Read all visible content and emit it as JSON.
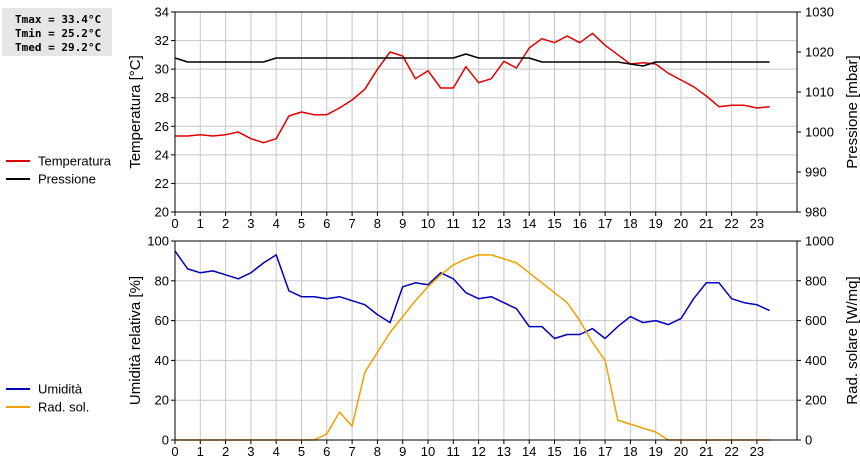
{
  "stats": {
    "tmax": "Tmax = 33.4°C",
    "tmin": "Tmin = 25.2°C",
    "tmed": "Tmed = 29.2°C"
  },
  "colors": {
    "temperature": "#dd0000",
    "pressure": "#000000",
    "humidity": "#0000bb",
    "radiation": "#f0a000",
    "grid": "#c8c8c8"
  },
  "chart_data": [
    {
      "type": "line",
      "x_ticks": [
        "0",
        "1",
        "2",
        "3",
        "4",
        "5",
        "6",
        "7",
        "8",
        "9",
        "10",
        "11",
        "12",
        "13",
        "14",
        "15",
        "16",
        "17",
        "18",
        "19",
        "20",
        "21",
        "22",
        "23"
      ],
      "ylabel_left": "Temperatura [°C]",
      "ylabel_right": "Pressione [mbar]",
      "ylim_left": [
        20,
        35
      ],
      "yticks_left": [
        "20",
        "22",
        "24",
        "26",
        "28",
        "30",
        "32",
        "34"
      ],
      "ylim_right": [
        980,
        1030
      ],
      "yticks_right": [
        "980",
        "990",
        "1000",
        "1010",
        "1020",
        "1030"
      ],
      "grid": true,
      "legend_position": "left",
      "x": [
        0,
        0.5,
        1,
        1.5,
        2,
        2.5,
        3,
        3.5,
        4,
        4.5,
        5,
        5.5,
        6,
        6.5,
        7,
        7.5,
        8,
        8.5,
        9,
        9.5,
        10,
        10.5,
        11,
        11.5,
        12,
        12.5,
        13,
        13.5,
        14,
        14.5,
        15,
        15.5,
        16,
        16.5,
        17,
        17.5,
        18,
        18.5,
        19,
        19.5,
        20,
        20.5,
        21,
        21.5,
        22,
        22.5,
        23,
        23.5
      ],
      "series": [
        {
          "name": "Temperatura",
          "axis": "left",
          "values": [
            25.7,
            25.7,
            25.8,
            25.7,
            25.8,
            26.0,
            25.5,
            25.2,
            25.5,
            27.2,
            27.5,
            27.3,
            27.3,
            27.8,
            28.4,
            29.2,
            30.7,
            32.0,
            31.7,
            30.0,
            30.6,
            29.3,
            29.3,
            30.9,
            29.7,
            30.0,
            31.3,
            30.8,
            32.3,
            33.0,
            32.7,
            33.2,
            32.7,
            33.4,
            32.5,
            31.8,
            31.1,
            31.2,
            31.1,
            30.4,
            29.9,
            29.4,
            28.7,
            27.9,
            28.0,
            28.0,
            27.8,
            27.9
          ]
        },
        {
          "name": "Pressione",
          "axis": "right",
          "values": [
            1018.5,
            1017.5,
            1017.5,
            1017.5,
            1017.5,
            1017.5,
            1017.5,
            1017.5,
            1018.5,
            1018.5,
            1018.5,
            1018.5,
            1018.5,
            1018.5,
            1018.5,
            1018.5,
            1018.5,
            1018.5,
            1018.5,
            1018.5,
            1018.5,
            1018.5,
            1018.5,
            1019.5,
            1018.5,
            1018.5,
            1018.5,
            1018.5,
            1018.5,
            1017.5,
            1017.5,
            1017.5,
            1017.5,
            1017.5,
            1017.5,
            1017.5,
            1017.0,
            1016.5,
            1017.5,
            1017.5,
            1017.5,
            1017.5,
            1017.5,
            1017.5,
            1017.5,
            1017.5,
            1017.5,
            1017.5
          ]
        }
      ]
    },
    {
      "type": "line",
      "x_ticks": [
        "0",
        "1",
        "2",
        "3",
        "4",
        "5",
        "6",
        "7",
        "8",
        "9",
        "10",
        "11",
        "12",
        "13",
        "14",
        "15",
        "16",
        "17",
        "18",
        "19",
        "20",
        "21",
        "22",
        "23"
      ],
      "ylabel_left": "Umidità relativa [%]",
      "ylabel_right": "Rad. solare [W/mq]",
      "ylim_left": [
        0,
        100
      ],
      "yticks_left": [
        "0",
        "20",
        "40",
        "60",
        "80",
        "100"
      ],
      "ylim_right": [
        0,
        1000
      ],
      "yticks_right": [
        "0",
        "200",
        "400",
        "600",
        "800",
        "1000"
      ],
      "grid": true,
      "legend_position": "left",
      "x": [
        0,
        0.5,
        1,
        1.5,
        2,
        2.5,
        3,
        3.5,
        4,
        4.5,
        5,
        5.5,
        6,
        6.5,
        7,
        7.5,
        8,
        8.5,
        9,
        9.5,
        10,
        10.5,
        11,
        11.5,
        12,
        12.5,
        13,
        13.5,
        14,
        14.5,
        15,
        15.5,
        16,
        16.5,
        17,
        17.5,
        18,
        18.5,
        19,
        19.5,
        20,
        20.5,
        21,
        21.5,
        22,
        22.5,
        23,
        23.5
      ],
      "series": [
        {
          "name": "Umidità",
          "axis": "left",
          "values": [
            95,
            86,
            84,
            85,
            83,
            81,
            84,
            89,
            93,
            75,
            72,
            72,
            71,
            72,
            70,
            68,
            63,
            59,
            77,
            79,
            78,
            84,
            81,
            74,
            71,
            72,
            69,
            66,
            57,
            57,
            51,
            53,
            53,
            56,
            51,
            57,
            62,
            59,
            60,
            58,
            61,
            71,
            79,
            79,
            71,
            69,
            68,
            65
          ]
        },
        {
          "name": "Rad. sol.",
          "axis": "right",
          "values": [
            0,
            0,
            0,
            0,
            0,
            0,
            0,
            0,
            0,
            0,
            0,
            0,
            30,
            140,
            70,
            340,
            440,
            540,
            620,
            700,
            770,
            830,
            880,
            910,
            930,
            930,
            910,
            890,
            840,
            790,
            740,
            690,
            600,
            490,
            400,
            100,
            80,
            60,
            40,
            0,
            0,
            0,
            0,
            0,
            0,
            0,
            0,
            0
          ]
        }
      ]
    }
  ]
}
